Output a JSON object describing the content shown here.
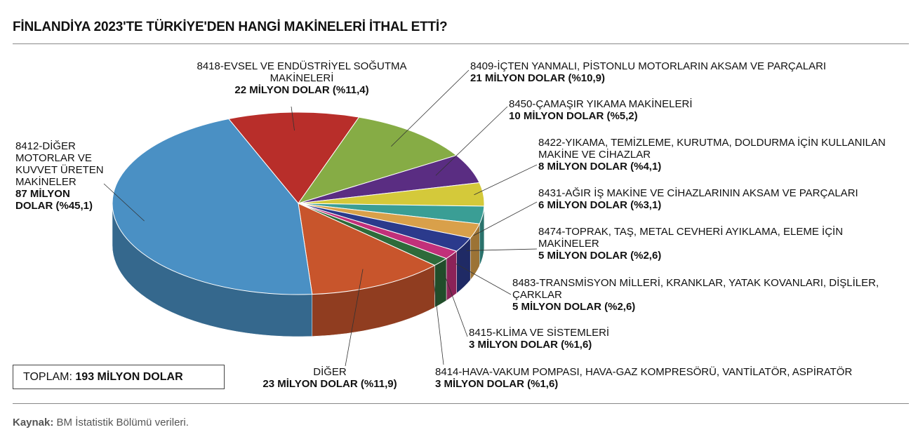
{
  "chart_data": {
    "type": "pie",
    "title": "FİNLANDİYA 2023'TE TÜRKİYE'DEN HANGİ MAKİNELERİ İTHAL ETTİ?",
    "categories": [
      "8418-EVSEL VE ENDÜSTRİYEL SOĞUTMA MAKİNELERİ",
      "8409-İÇTEN YANMALI, PİSTONLU MOTORLARIN AKSAM VE PARÇALARI",
      "8450-ÇAMAŞIR YIKAMA MAKİNELERİ",
      "8422-YIKAMA, TEMİZLEME, KURUTMA, DOLDURMA İÇİN KULLANILAN MAKİNE VE CİHAZLAR",
      "8431-AĞIR İŞ MAKİNE VE CİHAZLARININ AKSAM VE PARÇALARI",
      "8474-TOPRAK, TAŞ, METAL CEVHERİ AYIKLAMA, ELEME İÇİN MAKİNELER",
      "8483-TRANSMİSYON MİLLERİ, KRANKLAR, YATAK KOVANLARI, DİŞLİLER, ÇARKLAR",
      "8415-KLİMA VE SİSTEMLERİ",
      "8414-HAVA-VAKUM POMPASI, HAVA-GAZ KOMPRESÖRÜ, VANTİLATÖR, ASPİRATÖR",
      "DİĞER",
      "8412-DİĞER MOTORLAR VE KUVVET ÜRETEN MAKİNELER"
    ],
    "values": [
      22,
      21,
      10,
      8,
      6,
      5,
      5,
      3,
      3,
      23,
      87
    ],
    "value_labels": [
      "22 MİLYON DOLAR (%11,4)",
      "21 MİLYON DOLAR (%10,9)",
      "10 MİLYON DOLAR (%5,2)",
      "8 MİLYON DOLAR (%4,1)",
      "6 MİLYON DOLAR (%3,1)",
      "5 MİLYON DOLAR (%2,6)",
      "5 MİLYON DOLAR (%2,6)",
      "3 MİLYON DOLAR (%1,6)",
      "3 MİLYON DOLAR (%1,6)",
      "23 MİLYON DOLAR (%11,9)",
      "87 MİLYON DOLAR (%45,1)"
    ],
    "colors": [
      "#b82e2a",
      "#86ac45",
      "#5a2d82",
      "#d4c93a",
      "#3a9e95",
      "#d9a04a",
      "#2b3a8c",
      "#c2307a",
      "#2e6b3a",
      "#c8552c",
      "#4a90c4"
    ],
    "total": {
      "label": "TOPLAM:",
      "text": "193 MİLYON DOLAR"
    },
    "source": {
      "label": "Kaynak:",
      "text": "BM İstatistik Bölümü verileri."
    }
  }
}
